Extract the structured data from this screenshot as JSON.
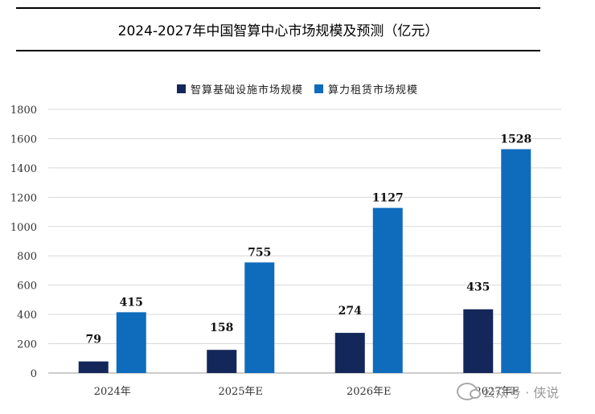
{
  "chart_data": {
    "type": "bar",
    "title": "2024-2027年中国智算中心市场规模及预测（亿元）",
    "categories": [
      "2024年",
      "2025年E",
      "2026年E",
      "2027年E"
    ],
    "series": [
      {
        "name": "智算基础设施市场规模",
        "color": "#13275a",
        "values": [
          79,
          158,
          274,
          435
        ]
      },
      {
        "name": "算力租赁市场规模",
        "color": "#0f6cbd",
        "values": [
          415,
          755,
          1127,
          1528
        ]
      }
    ],
    "ylim": [
      0,
      1800
    ],
    "yticks": [
      0,
      200,
      400,
      600,
      800,
      1000,
      1200,
      1400,
      1600,
      1800
    ],
    "grid": true,
    "legend_position": "top-center"
  },
  "watermark": {
    "text": "公众号 · 侠说"
  }
}
